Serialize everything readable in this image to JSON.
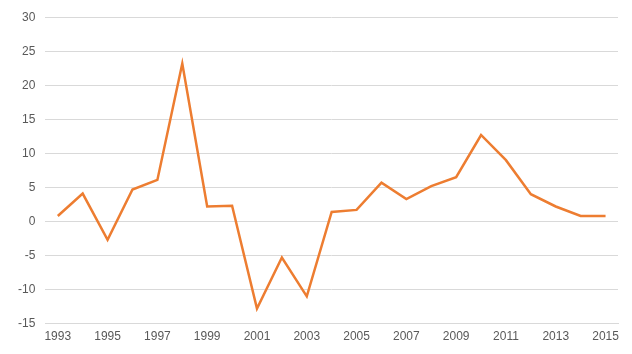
{
  "chart_data": {
    "type": "line",
    "categories": [
      "1993",
      null,
      "1995",
      null,
      "1997",
      null,
      "1999",
      null,
      "2001",
      null,
      "2003",
      null,
      "2005",
      null,
      "2007",
      null,
      "2009",
      null,
      "2011",
      null,
      "2013",
      null,
      "2015"
    ],
    "values": [
      0.8,
      4.1,
      -2.7,
      4.7,
      6.1,
      23.2,
      2.2,
      2.3,
      -12.8,
      -5.3,
      -11.0,
      1.4,
      1.7,
      5.7,
      3.3,
      5.2,
      6.5,
      12.7,
      9.0,
      4.0,
      2.2,
      0.8,
      0.8
    ],
    "color": "#ed7d31",
    "ylim": [
      -15,
      30
    ],
    "yticks": [
      -15,
      -10,
      -5,
      0,
      5,
      10,
      15,
      20,
      25,
      30
    ],
    "grid": true
  }
}
